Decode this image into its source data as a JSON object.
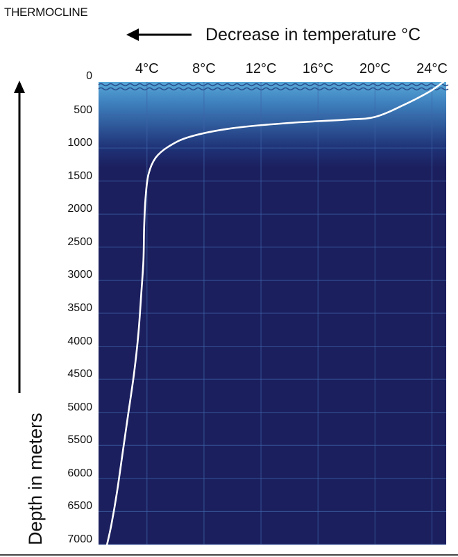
{
  "title": "THERMOCLINE",
  "top_label": "Decrease in  temperature °C",
  "colors": {
    "surface": "#58a8d8",
    "deep": "#1b1f5e",
    "curve": "#ffffff",
    "grid": "#3e64a8",
    "waves": "#2a4f8f"
  },
  "chart_data": {
    "type": "line",
    "title": "THERMOCLINE",
    "xlabel": "Decrease in  temperature °C",
    "ylabel": "Depth in meters",
    "x_ticks": [
      "4°C",
      "8°C",
      "12°C",
      "16°C",
      "20°C",
      "24°C"
    ],
    "x_tick_values": [
      4,
      8,
      12,
      16,
      20,
      24
    ],
    "y_ticks": [
      "0",
      "500",
      "1000",
      "1500",
      "2000",
      "2500",
      "3000",
      "3500",
      "4000",
      "4500",
      "5000",
      "5500",
      "6000",
      "6500",
      "7000"
    ],
    "y_tick_values": [
      0,
      500,
      1000,
      1500,
      2000,
      2500,
      3000,
      3500,
      4000,
      4500,
      5000,
      5500,
      6000,
      6500,
      7000
    ],
    "xlim": [
      0.6,
      25
    ],
    "ylim": [
      0,
      7000
    ],
    "y_axis_inverted": true,
    "grid": true,
    "series": [
      {
        "points": [
          {
            "x": 24.8,
            "y": 0
          },
          {
            "x": 23.8,
            "y": 150
          },
          {
            "x": 22.0,
            "y": 350
          },
          {
            "x": 20.0,
            "y": 530
          },
          {
            "x": 18.0,
            "y": 570
          },
          {
            "x": 14.0,
            "y": 620
          },
          {
            "x": 10.0,
            "y": 700
          },
          {
            "x": 7.0,
            "y": 830
          },
          {
            "x": 5.5,
            "y": 980
          },
          {
            "x": 4.6,
            "y": 1150
          },
          {
            "x": 4.1,
            "y": 1400
          },
          {
            "x": 3.9,
            "y": 1750
          },
          {
            "x": 3.8,
            "y": 2200
          },
          {
            "x": 3.75,
            "y": 2700
          },
          {
            "x": 3.6,
            "y": 3200
          },
          {
            "x": 3.4,
            "y": 3800
          },
          {
            "x": 3.1,
            "y": 4400
          },
          {
            "x": 2.7,
            "y": 5000
          },
          {
            "x": 2.3,
            "y": 5600
          },
          {
            "x": 1.9,
            "y": 6200
          },
          {
            "x": 1.5,
            "y": 6700
          },
          {
            "x": 1.2,
            "y": 7000
          }
        ]
      }
    ]
  }
}
